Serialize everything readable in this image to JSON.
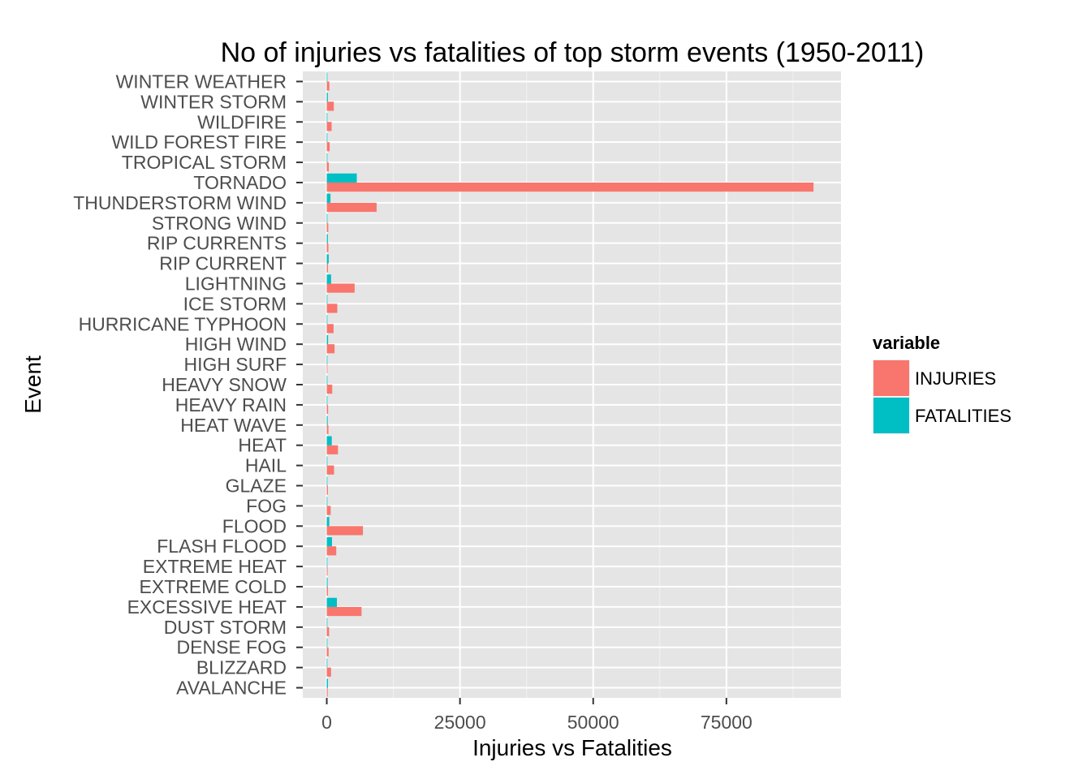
{
  "chart_data": {
    "type": "bar",
    "orientation": "horizontal",
    "title": "No of injuries vs fatalities of top storm events (1950-2011)",
    "xlabel": "Injuries vs Fatalities",
    "ylabel": "Event",
    "xlim": [
      -4500,
      96500
    ],
    "x_ticks": [
      0,
      25000,
      50000,
      75000
    ],
    "x_tick_labels": [
      "0",
      "25000",
      "50000",
      "75000"
    ],
    "grid": true,
    "legend_position": "right",
    "legend_title": "variable",
    "categories": [
      "WINTER WEATHER",
      "WINTER STORM",
      "WILDFIRE",
      "WILD FOREST FIRE",
      "TROPICAL STORM",
      "TORNADO",
      "THUNDERSTORM WIND",
      "STRONG WIND",
      "RIP CURRENTS",
      "RIP CURRENT",
      "LIGHTNING",
      "ICE STORM",
      "HURRICANE TYPHOON",
      "HIGH WIND",
      "HIGH SURF",
      "HEAVY SNOW",
      "HEAVY RAIN",
      "HEAT WAVE",
      "HEAT",
      "HAIL",
      "GLAZE",
      "FOG",
      "FLOOD",
      "FLASH FLOOD",
      "EXTREME HEAT",
      "EXTREME COLD",
      "EXCESSIVE HEAT",
      "DUST STORM",
      "DENSE FOG",
      "BLIZZARD",
      "AVALANCHE"
    ],
    "series": [
      {
        "name": "INJURIES",
        "color": "#f8766d",
        "values": [
          483,
          1321,
          911,
          545,
          383,
          91346,
          9353,
          280,
          297,
          232,
          5230,
          1975,
          1275,
          1462,
          50,
          1021,
          251,
          309,
          2100,
          1361,
          216,
          734,
          6789,
          1777,
          155,
          231,
          6525,
          440,
          342,
          805,
          170
        ]
      },
      {
        "name": "FATALITIES",
        "color": "#00bfc4",
        "values": [
          33,
          206,
          75,
          12,
          58,
          5633,
          701,
          103,
          204,
          368,
          816,
          89,
          64,
          248,
          104,
          127,
          98,
          172,
          937,
          15,
          7,
          62,
          470,
          978,
          96,
          160,
          1903,
          22,
          18,
          101,
          224
        ]
      }
    ]
  }
}
